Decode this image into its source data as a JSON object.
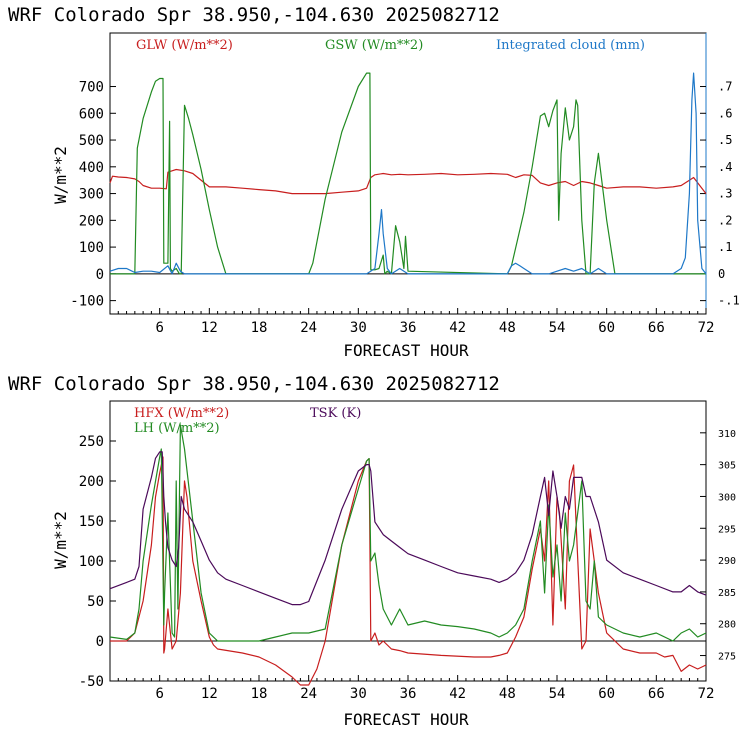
{
  "chart_data": [
    {
      "type": "line",
      "title": "WRF  Colorado Spr  38.950,-104.630  2025082712",
      "xlabel": "FORECAST HOUR",
      "ylabel": "W/m**2",
      "xlim": [
        0,
        72
      ],
      "ylim": [
        -150,
        900
      ],
      "y2lim": [
        -0.15,
        0.9
      ],
      "xticks": [
        "6",
        "12",
        "18",
        "24",
        "30",
        "36",
        "42",
        "48",
        "54",
        "60",
        "66",
        "72"
      ],
      "yticks": [
        "-100",
        "0",
        "100",
        "200",
        "300",
        "400",
        "500",
        "600",
        "700"
      ],
      "y2ticks": [
        "-.1",
        "0",
        ".1",
        ".2",
        ".3",
        ".4",
        ".5",
        ".6",
        ".7"
      ],
      "grid": false,
      "legend_position": "top",
      "series": [
        {
          "name": "GLW (W/m**2)",
          "color": "#c81e1e",
          "axis": "left",
          "x": [
            0,
            0.3,
            1,
            2,
            3,
            3.5,
            4,
            5,
            6,
            6.8,
            7,
            7.5,
            8,
            9,
            10,
            12,
            14,
            16,
            18,
            20,
            22,
            24,
            26,
            28,
            30,
            30.5,
            31,
            31.5,
            32,
            33,
            34,
            35,
            36,
            38,
            40,
            42,
            44,
            46,
            48,
            49,
            50,
            51,
            52,
            53,
            54,
            55,
            56,
            57,
            58,
            59,
            60,
            62,
            64,
            66,
            68,
            69,
            70,
            70.5,
            71,
            72
          ],
          "y": [
            340,
            365,
            362,
            360,
            355,
            345,
            330,
            320,
            320,
            318,
            380,
            385,
            390,
            385,
            375,
            325,
            325,
            320,
            315,
            310,
            300,
            300,
            300,
            305,
            310,
            315,
            320,
            360,
            370,
            375,
            370,
            372,
            370,
            372,
            375,
            370,
            372,
            375,
            372,
            360,
            370,
            368,
            340,
            330,
            340,
            345,
            330,
            345,
            340,
            330,
            320,
            325,
            325,
            320,
            325,
            330,
            350,
            360,
            340,
            300
          ]
        },
        {
          "name": "GSW (W/m**2)",
          "color": "#228b22",
          "axis": "left",
          "x": [
            0,
            3,
            3.3,
            4,
            5,
            5.5,
            6,
            6.4,
            6.5,
            7,
            7.2,
            7.3,
            7.5,
            8,
            8.4,
            8.6,
            9,
            9.5,
            10,
            11,
            12,
            13,
            14,
            24,
            24.5,
            26,
            28,
            30,
            31,
            31.4,
            31.5,
            32,
            32.5,
            33,
            33.2,
            33.5,
            34,
            34.5,
            35,
            35.5,
            35.7,
            36,
            48,
            48.5,
            50,
            51,
            52,
            52.5,
            53,
            53.5,
            54,
            54.2,
            54.5,
            55,
            55.5,
            56,
            56.3,
            56.5,
            57,
            57.5,
            58,
            58.5,
            59,
            60,
            61,
            62,
            72
          ],
          "y": [
            0,
            0,
            470,
            580,
            680,
            720,
            730,
            730,
            40,
            40,
            570,
            20,
            10,
            20,
            0,
            0,
            630,
            580,
            520,
            390,
            240,
            100,
            0,
            0,
            40,
            280,
            530,
            700,
            750,
            750,
            15,
            15,
            20,
            70,
            0,
            10,
            0,
            180,
            120,
            20,
            140,
            10,
            0,
            30,
            230,
            400,
            590,
            600,
            550,
            610,
            650,
            200,
            450,
            620,
            500,
            550,
            650,
            630,
            200,
            0,
            0,
            340,
            450,
            200,
            0,
            0,
            0
          ]
        },
        {
          "name": "Integrated cloud (mm)",
          "color": "#1e78c8",
          "axis": "right",
          "x": [
            0,
            1,
            2,
            3,
            4,
            5,
            6,
            7,
            7.5,
            8,
            8.5,
            9,
            10,
            20,
            30,
            31,
            32,
            32.5,
            32.8,
            33,
            33.5,
            34,
            35,
            36,
            48,
            48.5,
            49,
            49.5,
            50,
            51,
            53,
            54,
            55,
            56,
            57,
            58,
            59,
            60,
            62,
            68,
            69,
            69.5,
            70,
            70.3,
            70.5,
            70.8,
            71,
            71.5,
            72
          ],
          "y": [
            0.01,
            0.02,
            0.02,
            0.005,
            0.01,
            0.01,
            0.005,
            0.03,
            0,
            0.04,
            0.01,
            0,
            0,
            0,
            0,
            0,
            0.02,
            0.15,
            0.24,
            0.15,
            0.02,
            0,
            0.02,
            0,
            0,
            0.03,
            0.04,
            0.03,
            0.02,
            0,
            0,
            0.01,
            0.02,
            0.01,
            0.02,
            0,
            0.02,
            0,
            0,
            0,
            0.02,
            0.06,
            0.3,
            0.65,
            0.75,
            0.6,
            0.2,
            0.02,
            0
          ]
        }
      ]
    },
    {
      "type": "line",
      "title": "WRF  Colorado Spr  38.950,-104.630  2025082712",
      "xlabel": "FORECAST HOUR",
      "ylabel": "W/m**2",
      "xlim": [
        0,
        72
      ],
      "ylim": [
        -50,
        300
      ],
      "y2lim": [
        271,
        315
      ],
      "xticks": [
        "6",
        "12",
        "18",
        "24",
        "30",
        "36",
        "42",
        "48",
        "54",
        "60",
        "66",
        "72"
      ],
      "yticks": [
        "-50",
        "0",
        "50",
        "100",
        "150",
        "200",
        "250"
      ],
      "y2ticks": [
        "275",
        "280",
        "285",
        "290",
        "295",
        "300",
        "305",
        "310"
      ],
      "grid": false,
      "legend_position": "top",
      "series": [
        {
          "name": "HFX (W/m**2)",
          "color": "#c81e1e",
          "axis": "left",
          "x": [
            0,
            2,
            3,
            4,
            5,
            5.5,
            6,
            6.4,
            6.5,
            6.6,
            7,
            7.5,
            8,
            8.5,
            9,
            9.3,
            10,
            11,
            12,
            12.5,
            13,
            16,
            18,
            20,
            22,
            23,
            24,
            25,
            26,
            27,
            28,
            30,
            31,
            31.3,
            31.5,
            32,
            32.5,
            33,
            34,
            35,
            36,
            40,
            44,
            46,
            47,
            48,
            49,
            50,
            51,
            52,
            52.5,
            53,
            53.5,
            54,
            54.3,
            55,
            55.5,
            56,
            56.3,
            57,
            57.5,
            58,
            58.5,
            59,
            60,
            62,
            64,
            66,
            67,
            68,
            69,
            70,
            71,
            72
          ],
          "y": [
            0,
            0,
            10,
            50,
            120,
            180,
            210,
            230,
            -15,
            -10,
            40,
            -10,
            0,
            60,
            200,
            180,
            100,
            50,
            5,
            -5,
            -10,
            -15,
            -20,
            -30,
            -45,
            -55,
            -55,
            -35,
            0,
            60,
            120,
            200,
            225,
            228,
            0,
            10,
            -5,
            0,
            -10,
            -12,
            -15,
            -18,
            -20,
            -20,
            -18,
            -15,
            5,
            30,
            90,
            140,
            100,
            200,
            20,
            180,
            160,
            40,
            200,
            220,
            150,
            -10,
            0,
            140,
            100,
            60,
            10,
            -10,
            -15,
            -15,
            -20,
            -18,
            -38,
            -30,
            -35,
            -30
          ]
        },
        {
          "name": "LH  (W/m**2)",
          "color": "#228b22",
          "axis": "left",
          "x": [
            0,
            2,
            3,
            3.5,
            4,
            5,
            6,
            6.2,
            6.5,
            6.6,
            7,
            7.5,
            7.8,
            8,
            8.2,
            8.5,
            9,
            10,
            11,
            12,
            13,
            14,
            16,
            18,
            20,
            22,
            24,
            26,
            28,
            30,
            31,
            31.3,
            31.5,
            32,
            32.5,
            33,
            34,
            35,
            36,
            38,
            40,
            42,
            44,
            46,
            47,
            48,
            49,
            50,
            51,
            52,
            52.5,
            53,
            53.5,
            54,
            54.5,
            55,
            55.5,
            56,
            57,
            57.5,
            58,
            58.5,
            59,
            60,
            62,
            64,
            66,
            68,
            69,
            70,
            71,
            72
          ],
          "y": [
            5,
            2,
            10,
            40,
            100,
            170,
            230,
            240,
            20,
            60,
            160,
            10,
            5,
            200,
            40,
            270,
            240,
            150,
            60,
            10,
            0,
            0,
            0,
            0,
            5,
            10,
            10,
            15,
            120,
            190,
            225,
            228,
            100,
            110,
            70,
            40,
            20,
            40,
            20,
            25,
            20,
            18,
            15,
            10,
            5,
            10,
            20,
            40,
            100,
            150,
            60,
            170,
            80,
            120,
            50,
            160,
            100,
            120,
            200,
            50,
            40,
            100,
            30,
            20,
            10,
            5,
            10,
            0,
            10,
            15,
            5,
            10
          ]
        },
        {
          "name": "TSK (K)",
          "color": "#4b0a5a",
          "axis": "right",
          "x": [
            0,
            2,
            3,
            3.5,
            4,
            5,
            5.5,
            6,
            6.3,
            6.5,
            6.7,
            7,
            7.5,
            8,
            8.3,
            8.6,
            9,
            10,
            11,
            12,
            13,
            14,
            16,
            18,
            20,
            22,
            23,
            24,
            26,
            28,
            30,
            31,
            31.3,
            31.5,
            32,
            33,
            34,
            35,
            36,
            38,
            40,
            42,
            44,
            46,
            47,
            48,
            49,
            50,
            51,
            52,
            52.5,
            53,
            53.5,
            54,
            54.5,
            55,
            55.5,
            56,
            57,
            57.5,
            58,
            59,
            60,
            62,
            64,
            66,
            68,
            69,
            70,
            71,
            72
          ],
          "y": [
            285.5,
            286.5,
            287,
            289,
            298,
            303,
            306,
            307,
            307,
            300,
            296,
            292,
            290,
            289,
            292,
            300,
            298,
            296,
            293,
            290,
            288,
            287,
            286,
            285,
            284,
            283,
            283,
            283.5,
            290,
            298,
            304,
            305,
            305,
            304,
            296,
            294,
            293,
            292,
            291,
            290,
            289,
            288,
            287.5,
            287,
            286.5,
            287,
            288,
            290,
            294,
            300,
            303,
            297,
            304,
            300,
            295,
            300,
            298,
            303,
            303,
            300,
            300,
            296,
            290,
            288,
            287,
            286,
            285,
            285,
            286,
            285,
            284.5
          ]
        }
      ]
    }
  ]
}
